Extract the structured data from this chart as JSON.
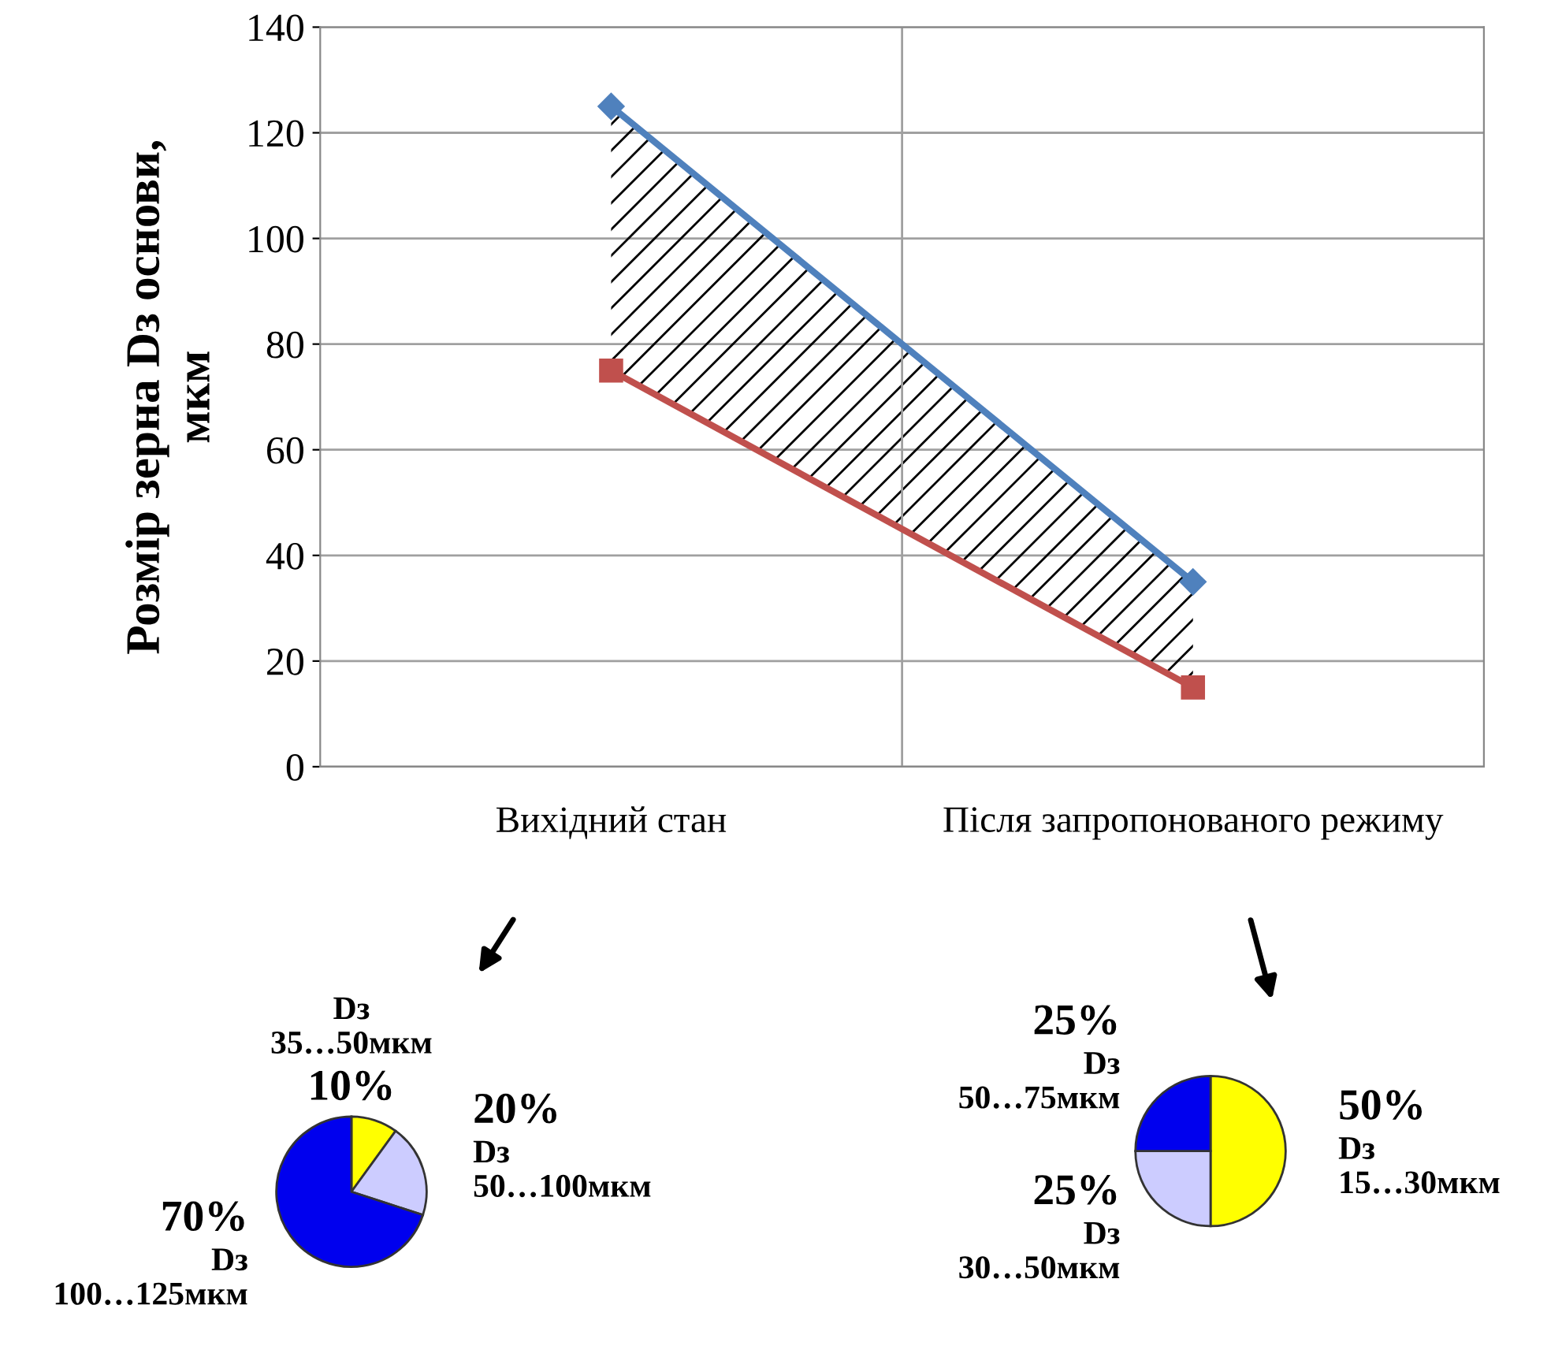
{
  "chart_data": [
    {
      "type": "line",
      "ylabel": "Розмір зерна Dз основи,\nмкм",
      "categories": [
        "Вихідний стан",
        "Після запропонованого режиму"
      ],
      "ylim": [
        0,
        140
      ],
      "yticks": [
        0,
        20,
        40,
        60,
        80,
        100,
        120,
        140
      ],
      "grid": true,
      "legend": false,
      "series": [
        {
          "color": "#4f81bd",
          "values": [
            125,
            35
          ],
          "marker": "diamond",
          "lower": [
            75,
            15
          ],
          "upper": [
            125,
            35
          ]
        },
        {
          "color": "#c0504d",
          "values": [
            75,
            15
          ],
          "marker": "square"
        }
      ]
    },
    {
      "type": "pie",
      "categories": [
        "Dз\n35…50мкм",
        "Dз\n50…100мкм",
        "Dз\n100…125мкм"
      ],
      "values": [
        10,
        20,
        70
      ],
      "value_labels": [
        "10%",
        "20%",
        "70%"
      ],
      "colors": [
        "#ffff00",
        "#ccccff",
        "#0000ee"
      ]
    },
    {
      "type": "pie",
      "categories": [
        "Dз\n15…30мкм",
        "Dз\n30…50мкм",
        "Dз\n50…75мкм"
      ],
      "values": [
        50,
        25,
        25
      ],
      "value_labels": [
        "50%",
        "25%",
        "25%"
      ],
      "colors": [
        "#ffff00",
        "#ccccff",
        "#0000ee"
      ]
    }
  ]
}
